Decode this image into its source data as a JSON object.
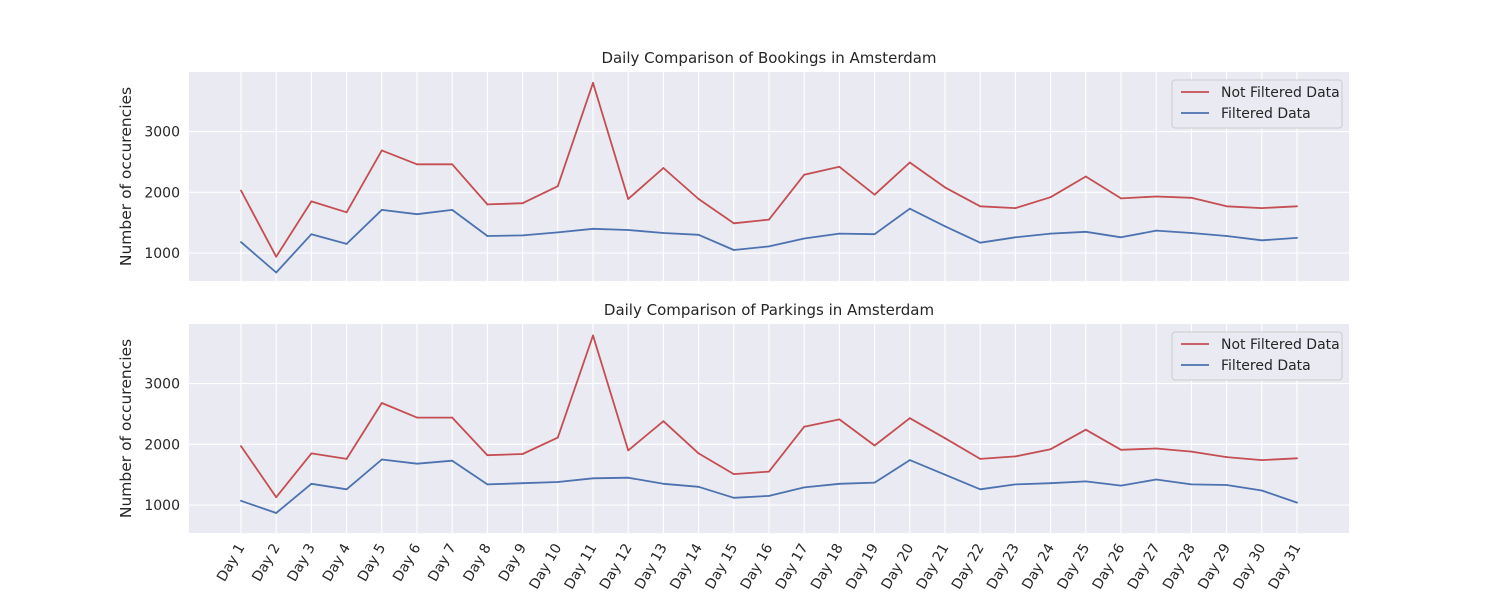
{
  "chart_data": [
    {
      "type": "line",
      "title": "Daily Comparison of Bookings in Amsterdam",
      "xlabel": "",
      "ylabel": "Number of occurencies",
      "ylim": [
        540,
        3980
      ],
      "yticks": [
        1000,
        2000,
        3000
      ],
      "grid": true,
      "legend_position": "top-right",
      "categories": [
        "Day 1",
        "Day 2",
        "Day 3",
        "Day 4",
        "Day 5",
        "Day 6",
        "Day 7",
        "Day 8",
        "Day 9",
        "Day 10",
        "Day 11",
        "Day 12",
        "Day 13",
        "Day 14",
        "Day 15",
        "Day 16",
        "Day 17",
        "Day 18",
        "Day 19",
        "Day 20",
        "Day 21",
        "Day 22",
        "Day 23",
        "Day 24",
        "Day 25",
        "Day 26",
        "Day 27",
        "Day 28",
        "Day 29",
        "Day 30",
        "Day 31"
      ],
      "series": [
        {
          "name": "Not Filtered Data",
          "color": "#c44e52",
          "values": [
            2030,
            940,
            1850,
            1670,
            2690,
            2460,
            2460,
            1800,
            1820,
            2100,
            3800,
            1890,
            2400,
            1890,
            1490,
            1550,
            2290,
            2420,
            1960,
            2490,
            2080,
            1770,
            1740,
            1920,
            2260,
            1900,
            1930,
            1910,
            1770,
            1740,
            1770
          ]
        },
        {
          "name": "Filtered Data",
          "color": "#4c72b0",
          "values": [
            1180,
            680,
            1310,
            1150,
            1710,
            1640,
            1710,
            1280,
            1290,
            1340,
            1400,
            1380,
            1330,
            1300,
            1050,
            1110,
            1240,
            1320,
            1310,
            1730,
            1440,
            1170,
            1260,
            1320,
            1350,
            1260,
            1370,
            1330,
            1280,
            1210,
            1250
          ]
        }
      ]
    },
    {
      "type": "line",
      "title": "Daily Comparison of Parkings in Amsterdam",
      "xlabel": "",
      "ylabel": "Number of occurencies",
      "ylim": [
        540,
        3980
      ],
      "yticks": [
        1000,
        2000,
        3000
      ],
      "grid": true,
      "legend_position": "top-right",
      "categories": [
        "Day 1",
        "Day 2",
        "Day 3",
        "Day 4",
        "Day 5",
        "Day 6",
        "Day 7",
        "Day 8",
        "Day 9",
        "Day 10",
        "Day 11",
        "Day 12",
        "Day 13",
        "Day 14",
        "Day 15",
        "Day 16",
        "Day 17",
        "Day 18",
        "Day 19",
        "Day 20",
        "Day 21",
        "Day 22",
        "Day 23",
        "Day 24",
        "Day 25",
        "Day 26",
        "Day 27",
        "Day 28",
        "Day 29",
        "Day 30",
        "Day 31"
      ],
      "series": [
        {
          "name": "Not Filtered Data",
          "color": "#c44e52",
          "values": [
            1970,
            1130,
            1850,
            1760,
            2680,
            2440,
            2440,
            1820,
            1840,
            2110,
            3790,
            1900,
            2380,
            1850,
            1510,
            1550,
            2290,
            2410,
            1980,
            2430,
            2100,
            1760,
            1800,
            1920,
            2240,
            1910,
            1930,
            1880,
            1790,
            1740,
            1770
          ]
        },
        {
          "name": "Filtered Data",
          "color": "#4c72b0",
          "values": [
            1070,
            870,
            1350,
            1260,
            1750,
            1680,
            1730,
            1340,
            1360,
            1380,
            1440,
            1450,
            1350,
            1300,
            1120,
            1150,
            1290,
            1350,
            1370,
            1740,
            1500,
            1260,
            1340,
            1360,
            1390,
            1320,
            1420,
            1340,
            1330,
            1240,
            1040
          ]
        }
      ]
    }
  ]
}
